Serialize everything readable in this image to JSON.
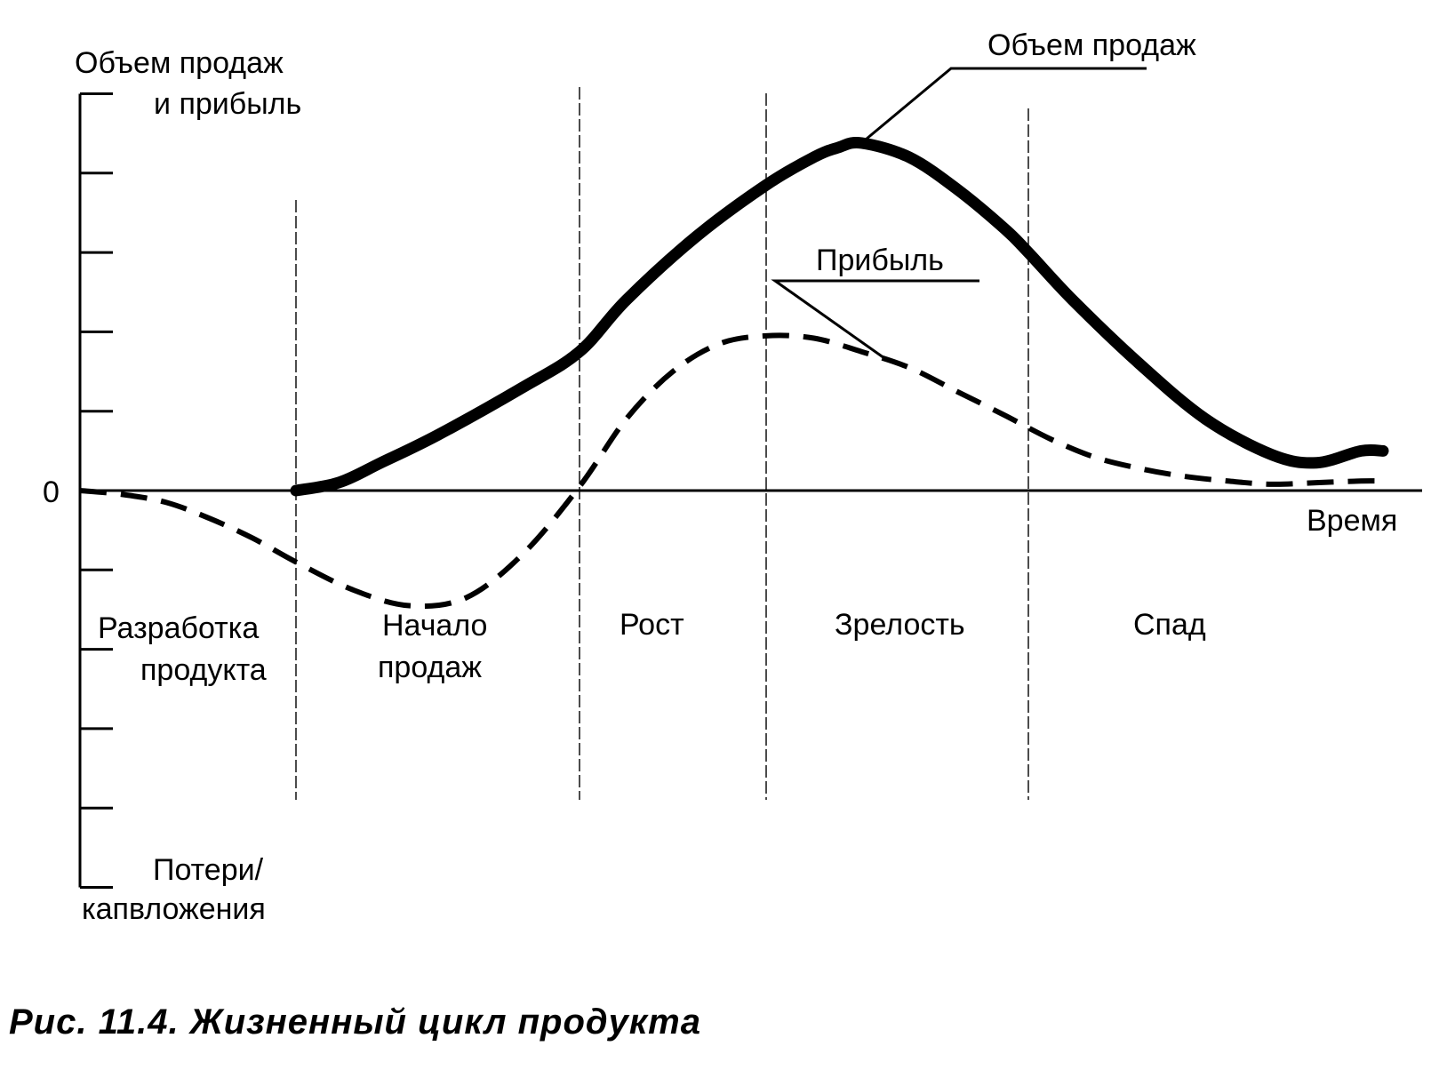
{
  "chart_data": {
    "type": "line",
    "x_unit": "stage",
    "ylabel": [
      "Объем продаж",
      "и прибыль"
    ],
    "ylabel_negative": [
      "Потери/",
      "капвложения"
    ],
    "xlabel": "Время",
    "zero_label": "0",
    "ylim": [
      -5,
      5
    ],
    "y_tick_count": 11,
    "xlim": [
      0,
      5.7
    ],
    "stage_boundaries": [
      1,
      2,
      2.8,
      3.9
    ],
    "stages": [
      {
        "label": [
          "Разработка",
          "продукта"
        ]
      },
      {
        "label": [
          "Начало",
          "продаж"
        ]
      },
      {
        "label": [
          "Рост"
        ]
      },
      {
        "label": [
          "Зрелость"
        ]
      },
      {
        "label": [
          "Спад"
        ]
      }
    ],
    "series": [
      {
        "name": "Объем продаж",
        "style": "solid",
        "x": [
          1.0,
          1.15,
          1.3,
          1.5,
          1.8,
          2.0,
          2.2,
          2.5,
          2.8,
          3.0,
          3.1,
          3.2,
          3.4,
          3.6,
          3.8,
          3.9,
          4.1,
          4.4,
          4.7,
          5.0,
          5.2,
          5.4,
          5.5
        ],
        "y": [
          0.0,
          0.1,
          0.35,
          0.7,
          1.3,
          1.75,
          2.4,
          3.2,
          3.85,
          4.2,
          4.32,
          4.38,
          4.2,
          3.8,
          3.3,
          3.0,
          2.4,
          1.6,
          0.9,
          0.45,
          0.35,
          0.5,
          0.5
        ]
      },
      {
        "name": "Прибыль",
        "style": "dashed",
        "x": [
          0.0,
          0.2,
          0.4,
          0.6,
          0.8,
          1.0,
          1.2,
          1.4,
          1.6,
          1.8,
          2.0,
          2.2,
          2.4,
          2.6,
          2.8,
          3.0,
          3.2,
          3.4,
          3.6,
          3.8,
          4.0,
          4.2,
          4.4,
          4.6,
          4.8,
          5.0,
          5.2,
          5.4,
          5.5
        ],
        "y": [
          0.0,
          -0.05,
          -0.15,
          -0.35,
          -0.6,
          -0.9,
          -1.25,
          -1.45,
          -1.35,
          -0.8,
          0.05,
          0.9,
          1.5,
          1.85,
          1.95,
          1.92,
          1.75,
          1.55,
          1.25,
          0.95,
          0.65,
          0.42,
          0.28,
          0.18,
          0.12,
          0.08,
          0.1,
          0.12,
          0.12
        ]
      }
    ],
    "annotations": [
      {
        "text": "Объем продаж",
        "series": "Объем продаж"
      },
      {
        "text": "Прибыль",
        "series": "Прибыль"
      }
    ]
  },
  "caption": "Рис. 11.4. Жизненный цикл продукта"
}
